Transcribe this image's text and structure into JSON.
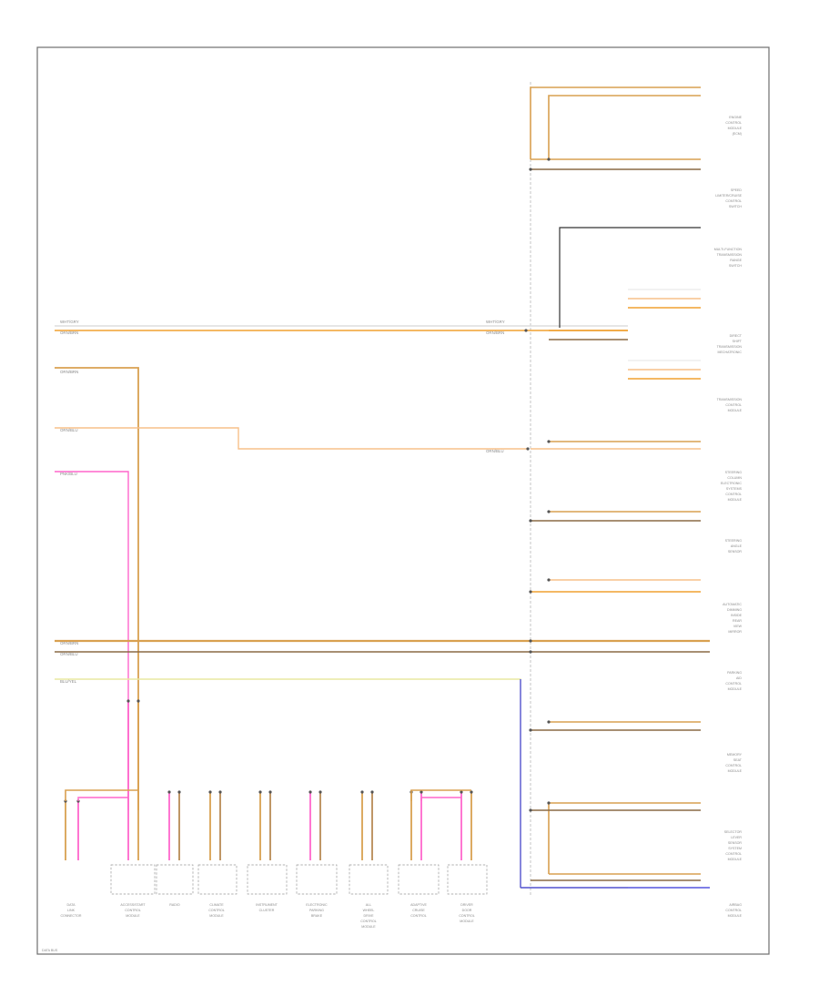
{
  "diagram": {
    "page_label": "DATA BUS",
    "colors": {
      "orange": "#f0a030",
      "orange_brown": "#d9a050",
      "brown": "#b88a55",
      "pink": "#ff66cc",
      "yellow": "#f2f2b0",
      "blue": "#5555dd",
      "black": "#333333",
      "light_orange": "#f7c08a"
    },
    "left_wire_labels": [
      "WHT/GRY",
      "ORN/BRN",
      "ORN/BRN",
      "ORN/BLU",
      "PNK/BLU",
      "ORN/BRN",
      "ORN/BLU",
      "BLU/YEL"
    ],
    "right_wire_labels": [
      "WHT/GRY",
      "ORN/BRN",
      "ORN/BLU"
    ],
    "right_components": [
      "ENGINE CONTROL MODULE (ECM)",
      "SPEED LIMITER/CRUISE CONTROL SWITCH",
      "MULTI-FUNCTION TRANSMISSION RANGE SWITCH",
      "DIRECT SHIFT TRANSMISSION MECHATRONIC",
      "TRANSMISSION CONTROL MODULE",
      "STEERING COLUMN ELECTRONIC SYSTEMS CONTROL MODULE",
      "STEERING ANGLE SENSOR",
      "AUTOMATIC DIMMING INSIDE REAR VIEW MIRROR",
      "PARKING AID CONTROL MODULE",
      "MEMORY SEAT CONTROL MODULE",
      "SELECTOR LEVER SENSOR SYSTEM CONTROL MODULE",
      "AIRBAG CONTROL MODULE"
    ],
    "bottom_components": [
      "DATA LINK CONNECTOR",
      "ACCESS/START CONTROL MODULE",
      "RADIO",
      "CLIMATE CONTROL MODULE",
      "INSTRUMENT CLUSTER",
      "ELECTRONIC PARKING BRAKE",
      "ALL WHEEL DRIVE CONTROL MODULE",
      "ADAPTIVE CRUISE CONTROL",
      "LIGHTING CONTROL MODULE",
      "DRIVER DOOR CONTROL MODULE"
    ]
  }
}
